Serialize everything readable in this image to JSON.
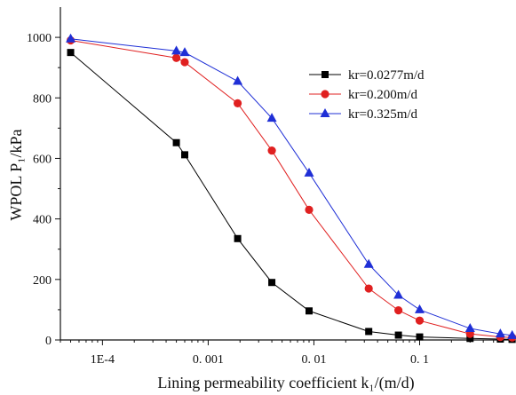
{
  "chart_data": {
    "type": "line",
    "title": "",
    "xlabel": "Lining permeability coefficient k₁/(m/d)",
    "ylabel": "WPOL P₁/kPa",
    "x_scale": "log",
    "xlim": [
      4e-05,
      0.8
    ],
    "ylim": [
      0,
      1100
    ],
    "x_ticks": [
      {
        "value": 0.0001,
        "label": "1E-4"
      },
      {
        "value": 0.001,
        "label": "0. 001"
      },
      {
        "value": 0.01,
        "label": "0. 01"
      },
      {
        "value": 0.1,
        "label": "0. 1"
      }
    ],
    "y_ticks": [
      0,
      200,
      400,
      600,
      800,
      1000
    ],
    "grid": false,
    "legend_position": "top-right",
    "series": [
      {
        "name": "kr=0.0277m/d",
        "color": "#000000",
        "marker": "square",
        "points": [
          [
            5e-05,
            950
          ],
          [
            0.0005,
            652
          ],
          [
            0.0006,
            612
          ],
          [
            0.0019,
            335
          ],
          [
            0.004,
            190
          ],
          [
            0.009,
            96
          ],
          [
            0.033,
            28
          ],
          [
            0.063,
            16
          ],
          [
            0.1,
            10
          ],
          [
            0.3,
            5
          ],
          [
            0.58,
            3
          ],
          [
            0.75,
            2
          ]
        ]
      },
      {
        "name": "kr=0.200m/d",
        "color": "#e02020",
        "marker": "circle",
        "points": [
          [
            5e-05,
            990
          ],
          [
            0.0005,
            932
          ],
          [
            0.0006,
            918
          ],
          [
            0.0019,
            782
          ],
          [
            0.004,
            626
          ],
          [
            0.009,
            430
          ],
          [
            0.033,
            170
          ],
          [
            0.063,
            98
          ],
          [
            0.1,
            64
          ],
          [
            0.3,
            20
          ],
          [
            0.58,
            10
          ],
          [
            0.75,
            8
          ]
        ]
      },
      {
        "name": "kr=0.325m/d",
        "color": "#1f2fd6",
        "marker": "triangle",
        "points": [
          [
            5e-05,
            995
          ],
          [
            0.0005,
            955
          ],
          [
            0.0006,
            950
          ],
          [
            0.0019,
            855
          ],
          [
            0.004,
            733
          ],
          [
            0.009,
            552
          ],
          [
            0.033,
            250
          ],
          [
            0.063,
            148
          ],
          [
            0.1,
            100
          ],
          [
            0.3,
            38
          ],
          [
            0.58,
            20
          ],
          [
            0.75,
            15
          ]
        ]
      }
    ]
  }
}
